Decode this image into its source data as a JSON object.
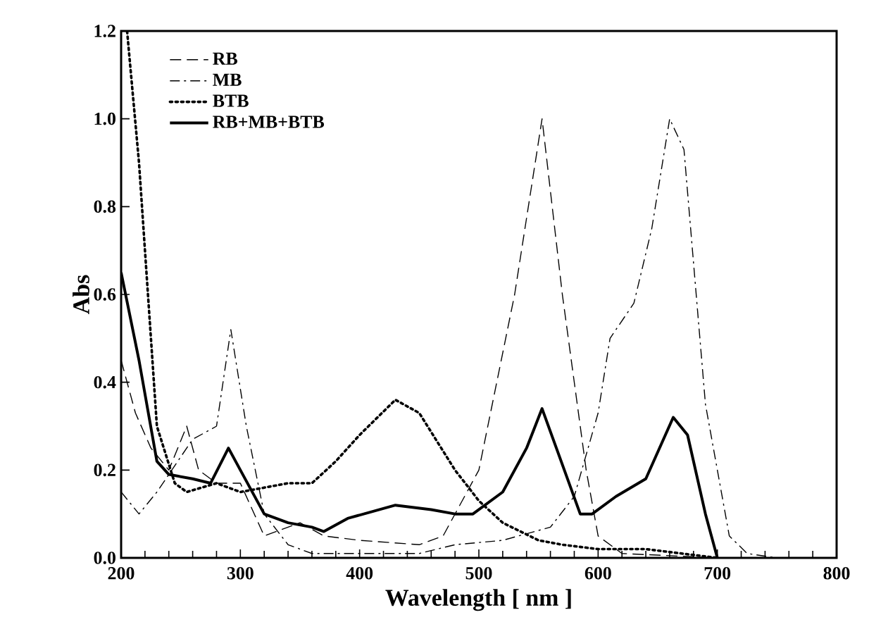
{
  "chart_data": {
    "type": "line",
    "xlabel": "Wavelength [ nm ]",
    "ylabel": "Abs",
    "xlim": [
      200,
      800
    ],
    "ylim": [
      0,
      1.2
    ],
    "xticks": [
      200,
      300,
      400,
      500,
      600,
      700,
      800
    ],
    "yticks": [
      {
        "value": 0,
        "label": "0.0"
      },
      {
        "value": 0.2,
        "label": "0.2"
      },
      {
        "value": 0.4,
        "label": "0.4"
      },
      {
        "value": 0.6,
        "label": "0.6"
      },
      {
        "value": 0.8,
        "label": "0.8"
      },
      {
        "value": 1.0,
        "label": "1.0"
      },
      {
        "value": 1.2,
        "label": "1.2"
      }
    ],
    "grid": false,
    "legend": "top left",
    "marker": "none",
    "series": [
      {
        "name": "RB",
        "color": "#000000",
        "line_style": "dashed",
        "x": [
          200,
          212,
          225,
          240,
          255,
          265,
          280,
          300,
          320,
          340,
          350,
          370,
          400,
          450,
          470,
          500,
          530,
          553,
          570,
          590,
          600,
          620,
          700
        ],
        "values": [
          0.45,
          0.33,
          0.25,
          0.2,
          0.3,
          0.2,
          0.17,
          0.17,
          0.05,
          0.07,
          0.08,
          0.05,
          0.04,
          0.03,
          0.05,
          0.2,
          0.6,
          1.0,
          0.6,
          0.2,
          0.05,
          0.01,
          0
        ]
      },
      {
        "name": "MB",
        "color": "#000000",
        "line_style": "dashdot",
        "x": [
          200,
          215,
          230,
          260,
          280,
          292,
          305,
          320,
          340,
          360,
          400,
          450,
          480,
          520,
          560,
          580,
          600,
          610,
          630,
          645,
          660,
          672,
          690,
          710,
          725,
          750
        ],
        "values": [
          0.15,
          0.1,
          0.15,
          0.27,
          0.3,
          0.52,
          0.3,
          0.1,
          0.03,
          0.01,
          0.01,
          0.01,
          0.03,
          0.04,
          0.07,
          0.14,
          0.33,
          0.5,
          0.58,
          0.75,
          1.0,
          0.93,
          0.35,
          0.05,
          0.01,
          0
        ]
      },
      {
        "name": "BTB",
        "color": "#000000",
        "line_style": "dotted",
        "x": [
          205,
          215,
          230,
          245,
          255,
          280,
          300,
          320,
          340,
          360,
          380,
          400,
          430,
          450,
          480,
          500,
          520,
          550,
          570,
          600,
          640,
          670,
          700
        ],
        "values": [
          1.2,
          0.9,
          0.3,
          0.17,
          0.15,
          0.17,
          0.15,
          0.16,
          0.17,
          0.17,
          0.22,
          0.28,
          0.36,
          0.33,
          0.2,
          0.13,
          0.08,
          0.04,
          0.03,
          0.02,
          0.02,
          0.01,
          0
        ]
      },
      {
        "name": "RB+MB+BTB",
        "color": "#000000",
        "line_style": "solid",
        "x": [
          200,
          215,
          230,
          240,
          260,
          275,
          290,
          300,
          320,
          340,
          360,
          370,
          390,
          430,
          460,
          480,
          495,
          520,
          540,
          553,
          565,
          585,
          595,
          615,
          640,
          663,
          675,
          690,
          700
        ],
        "values": [
          0.65,
          0.45,
          0.22,
          0.19,
          0.18,
          0.17,
          0.25,
          0.2,
          0.1,
          0.08,
          0.07,
          0.06,
          0.09,
          0.12,
          0.11,
          0.1,
          0.1,
          0.15,
          0.25,
          0.34,
          0.25,
          0.1,
          0.1,
          0.14,
          0.18,
          0.32,
          0.28,
          0.1,
          0
        ]
      }
    ]
  }
}
